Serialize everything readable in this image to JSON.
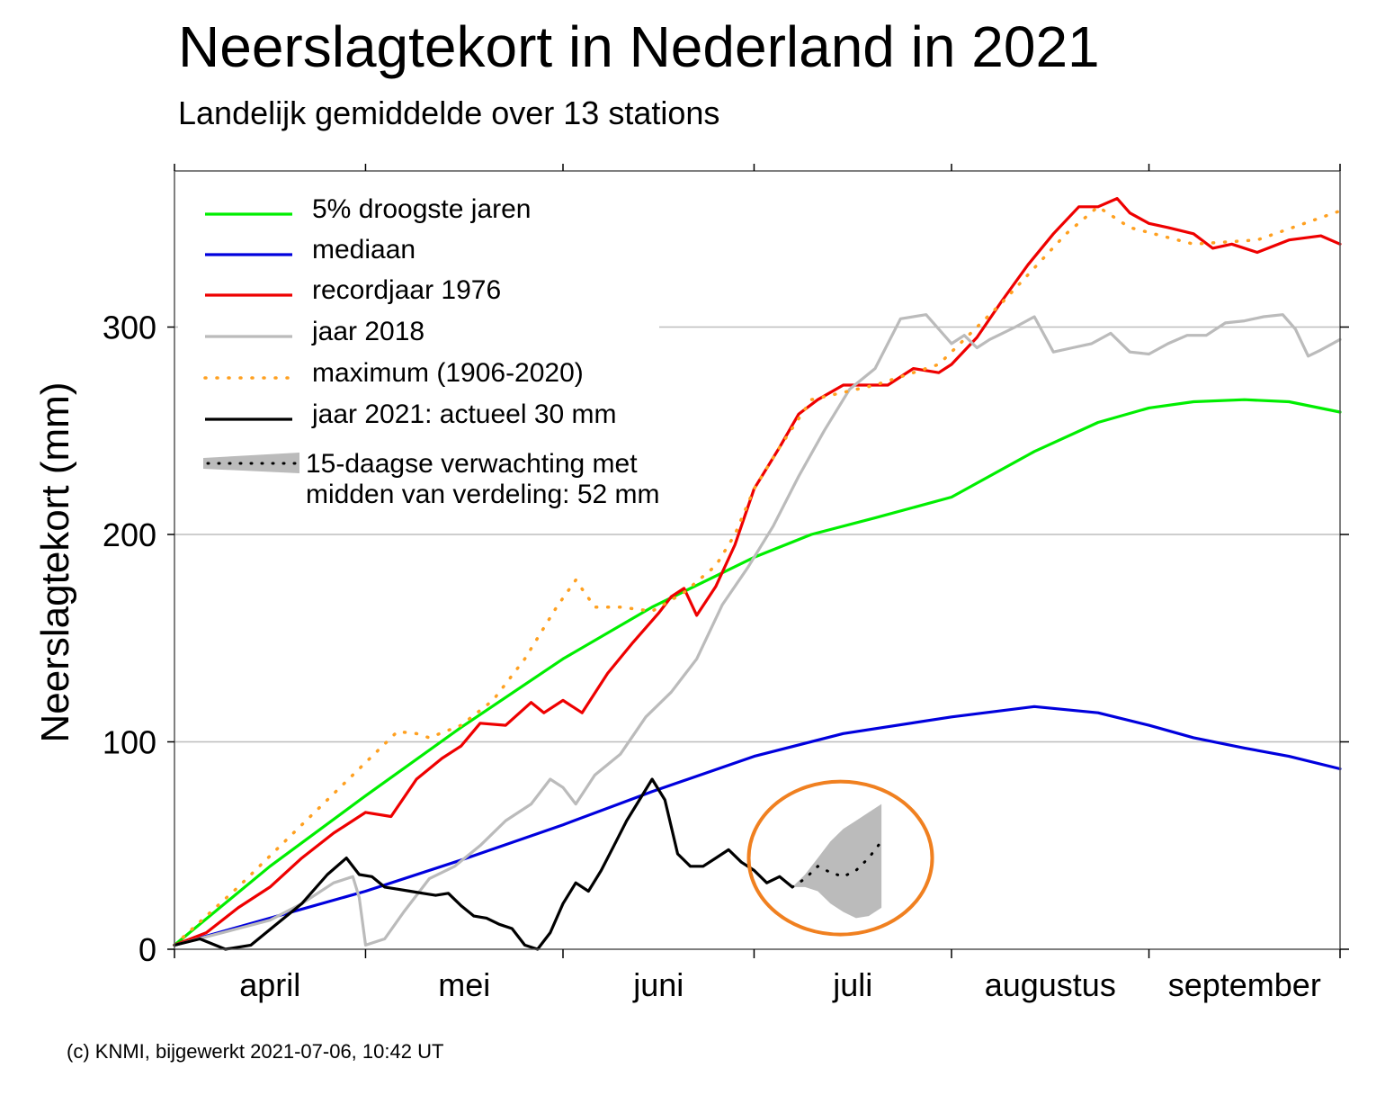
{
  "chart_data": {
    "type": "line",
    "title": "Neerslagtekort in Nederland in 2021",
    "subtitle": "Landelijk gemiddelde over 13 stations",
    "ylabel": "Neerslagtekort (mm)",
    "xlabel": "",
    "ylim": [
      0,
      375
    ],
    "yticks": [
      0,
      100,
      200,
      300
    ],
    "ytick_labels": [
      "0",
      "100",
      "200",
      "300"
    ],
    "xlim": [
      0,
      183
    ],
    "month_boundaries": [
      0,
      30,
      61,
      91,
      122,
      153,
      183
    ],
    "month_labels": [
      "april",
      "mei",
      "juni",
      "juli",
      "augustus",
      "september"
    ],
    "grid": "horizontal",
    "legend_position": "top-left",
    "series": [
      {
        "name": "5% droogste jaren",
        "color": "#00ee00",
        "style": "solid",
        "x": [
          0,
          15,
          30,
          45,
          61,
          75,
          91,
          100,
          110,
          122,
          135,
          145,
          153,
          160,
          168,
          175,
          183
        ],
        "y": [
          2,
          40,
          74,
          107,
          140,
          165,
          189,
          200,
          208,
          218,
          240,
          254,
          261,
          264,
          265,
          264,
          259
        ]
      },
      {
        "name": "mediaan",
        "color": "#0000dd",
        "style": "solid",
        "x": [
          0,
          15,
          30,
          45,
          61,
          75,
          91,
          105,
          122,
          135,
          145,
          153,
          160,
          168,
          175,
          183
        ],
        "y": [
          2,
          15,
          28,
          43,
          60,
          76,
          93,
          104,
          112,
          117,
          114,
          108,
          102,
          97,
          93,
          87
        ]
      },
      {
        "name": "recordjaar 1976",
        "color": "#ee0000",
        "style": "solid",
        "x": [
          0,
          5,
          10,
          15,
          20,
          25,
          30,
          34,
          38,
          42,
          45,
          48,
          52,
          56,
          58,
          61,
          64,
          68,
          72,
          76,
          78,
          80,
          82,
          85,
          88,
          91,
          95,
          98,
          101,
          105,
          108,
          112,
          116,
          120,
          122,
          126,
          130,
          134,
          138,
          142,
          145,
          148,
          150,
          153,
          156,
          160,
          163,
          166,
          170,
          175,
          180,
          183
        ],
        "y": [
          2,
          8,
          20,
          30,
          44,
          56,
          66,
          64,
          82,
          92,
          98,
          109,
          108,
          119,
          114,
          120,
          114,
          133,
          148,
          162,
          170,
          174,
          161,
          175,
          195,
          222,
          242,
          258,
          265,
          272,
          272,
          272,
          280,
          278,
          282,
          295,
          313,
          330,
          345,
          358,
          358,
          362,
          355,
          350,
          348,
          345,
          338,
          340,
          336,
          342,
          344,
          340
        ]
      },
      {
        "name": "jaar 2018",
        "color": "#bbbbbb",
        "style": "solid",
        "x": [
          0,
          5,
          10,
          15,
          20,
          25,
          28,
          29,
          30,
          33,
          36,
          40,
          44,
          48,
          52,
          56,
          59,
          61,
          63,
          66,
          70,
          74,
          78,
          82,
          86,
          90,
          94,
          98,
          102,
          106,
          110,
          114,
          118,
          122,
          124,
          126,
          128,
          130,
          132,
          135,
          138,
          141,
          144,
          147,
          150,
          153,
          156,
          159,
          162,
          165,
          168,
          171,
          174,
          176,
          178,
          180,
          183
        ],
        "y": [
          2,
          6,
          10,
          14,
          22,
          32,
          35,
          25,
          2,
          5,
          18,
          34,
          40,
          50,
          62,
          70,
          82,
          78,
          70,
          84,
          94,
          112,
          124,
          140,
          166,
          184,
          204,
          228,
          250,
          270,
          280,
          304,
          306,
          292,
          296,
          290,
          294,
          297,
          300,
          305,
          288,
          290,
          292,
          297,
          288,
          287,
          292,
          296,
          296,
          302,
          303,
          305,
          306,
          299,
          286,
          289,
          294
        ]
      },
      {
        "name": "maximum (1906-2020)",
        "color": "#ffa020",
        "style": "dotted",
        "x": [
          0,
          10,
          20,
          30,
          35,
          38,
          40,
          45,
          50,
          55,
          60,
          63,
          66,
          70,
          75,
          80,
          85,
          88,
          91,
          95,
          100,
          110,
          120,
          130,
          140,
          145,
          150,
          160,
          170,
          183
        ],
        "y": [
          2,
          30,
          60,
          90,
          105,
          104,
          102,
          108,
          120,
          140,
          165,
          178,
          165,
          165,
          163,
          172,
          185,
          200,
          222,
          242,
          265,
          272,
          282,
          312,
          345,
          358,
          348,
          340,
          342,
          356
        ]
      },
      {
        "name": "jaar 2021: actueel 30 mm",
        "color": "#000000",
        "style": "solid",
        "x": [
          0,
          4,
          8,
          12,
          16,
          20,
          24,
          27,
          29,
          31,
          33,
          35,
          37,
          39,
          41,
          43,
          45,
          47,
          49,
          51,
          53,
          55,
          57,
          59,
          61,
          63,
          65,
          67,
          69,
          71,
          73,
          75,
          77,
          79,
          81,
          83,
          85,
          87,
          89,
          91,
          93,
          95,
          97
        ],
        "y": [
          2,
          5,
          0,
          2,
          12,
          22,
          36,
          44,
          36,
          35,
          30,
          29,
          28,
          27,
          26,
          27,
          21,
          16,
          15,
          12,
          10,
          2,
          0,
          8,
          22,
          32,
          28,
          38,
          50,
          62,
          72,
          82,
          72,
          46,
          40,
          40,
          44,
          48,
          42,
          38,
          32,
          35,
          30
        ]
      }
    ],
    "forecast": {
      "label": "15-daagse verwachting met\nmidden van verdeling: 52 mm",
      "color": "#bbbbbb",
      "x": [
        97,
        99,
        101,
        103,
        105,
        107,
        109,
        111
      ],
      "median": [
        30,
        34,
        40,
        37,
        35,
        38,
        44,
        52
      ],
      "upper": [
        30,
        36,
        44,
        52,
        58,
        62,
        66,
        70
      ],
      "lower": [
        30,
        30,
        28,
        22,
        18,
        15,
        16,
        20
      ]
    },
    "annotation": {
      "shape": "circle",
      "color": "#f08020",
      "x": 104,
      "y": 44
    }
  },
  "credit": "(c) KNMI, bijgewerkt 2021-07-06, 10:42 UT"
}
